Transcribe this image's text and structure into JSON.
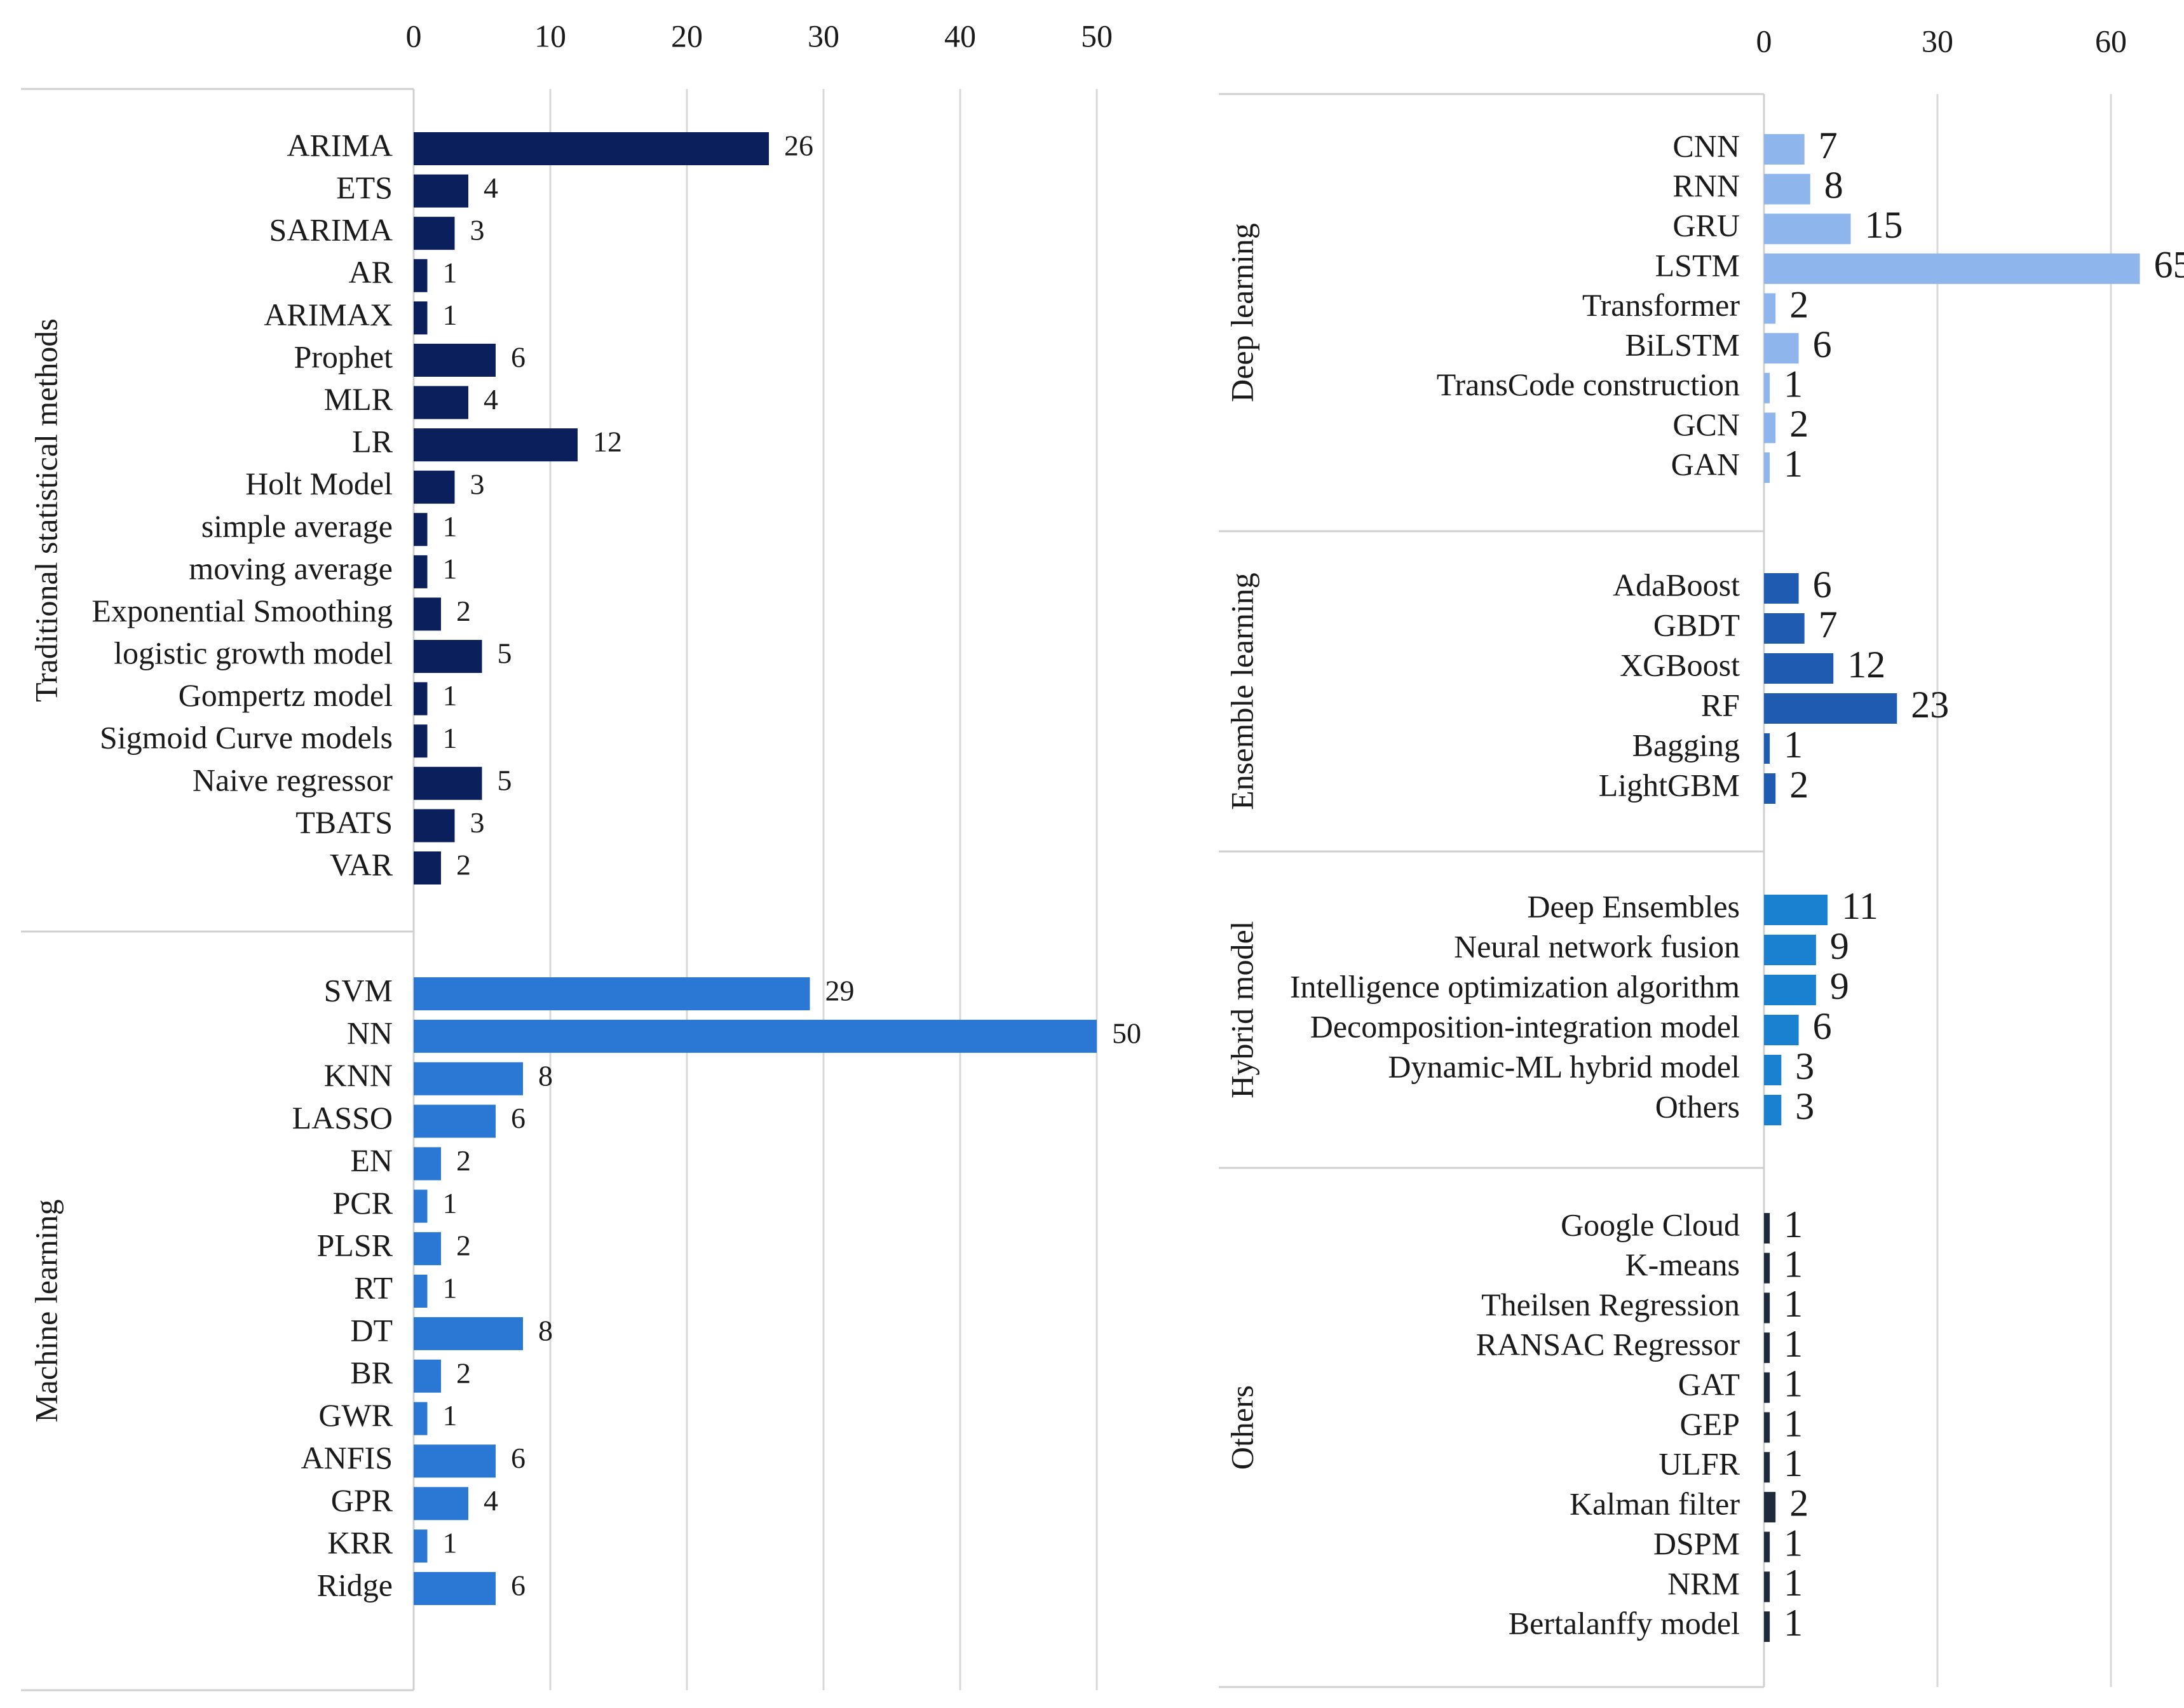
{
  "colors": {
    "traditional": "#0b1f5c",
    "machine_learning": "#2a77d4",
    "deep_learning": "#8fb6ec",
    "ensemble": "#1f5bb0",
    "hybrid": "#1a80d0",
    "others": "#1e2a3a",
    "grid": "#d9d9d9",
    "divider": "#d0d0d0"
  },
  "chart_data": [
    {
      "type": "bar",
      "orientation": "horizontal",
      "panel": "left",
      "xlim": [
        0,
        50
      ],
      "ticks": [
        "0",
        "10",
        "20",
        "30",
        "40",
        "50"
      ],
      "tick_values": [
        0,
        10,
        20,
        30,
        40,
        50
      ],
      "groups": [
        {
          "key": "traditional",
          "label": "Traditional statistical methods",
          "categories": [
            "ARIMA",
            "ETS",
            "SARIMA",
            "AR",
            "ARIMAX",
            "Prophet",
            "MLR",
            "LR",
            "Holt Model",
            "simple average",
            "moving average",
            "Exponential Smoothing",
            "logistic growth model",
            "Gompertz model",
            "Sigmoid Curve models",
            "Naive regressor",
            "TBATS",
            "VAR"
          ],
          "values": [
            26,
            4,
            3,
            1,
            1,
            6,
            4,
            12,
            3,
            1,
            1,
            2,
            5,
            1,
            1,
            5,
            3,
            2
          ]
        },
        {
          "key": "machine_learning",
          "label": "Machine learning",
          "categories": [
            "SVM",
            "NN",
            "KNN",
            "LASSO",
            "EN",
            "PCR",
            "PLSR",
            "RT",
            "DT",
            "BR",
            "GWR",
            "ANFIS",
            "GPR",
            "KRR",
            "Ridge"
          ],
          "values": [
            29,
            50,
            8,
            6,
            2,
            1,
            2,
            1,
            8,
            2,
            1,
            6,
            4,
            1,
            6
          ]
        }
      ]
    },
    {
      "type": "bar",
      "orientation": "horizontal",
      "panel": "right",
      "xlim": [
        0,
        65
      ],
      "ticks": [
        "0",
        "30",
        "60"
      ],
      "tick_values": [
        0,
        30,
        60
      ],
      "groups": [
        {
          "key": "deep_learning",
          "label": "Deep learning",
          "categories": [
            "CNN",
            "RNN",
            "GRU",
            "LSTM",
            "Transformer",
            "BiLSTM",
            "TransCode construction",
            "GCN",
            "GAN"
          ],
          "values": [
            7,
            8,
            15,
            65,
            2,
            6,
            1,
            2,
            1
          ]
        },
        {
          "key": "ensemble",
          "label": "Ensemble learning",
          "categories": [
            "AdaBoost",
            "GBDT",
            "XGBoost",
            "RF",
            "Bagging",
            "LightGBM"
          ],
          "values": [
            6,
            7,
            12,
            23,
            1,
            2
          ]
        },
        {
          "key": "hybrid",
          "label": "Hybrid model",
          "categories": [
            "Deep Ensembles",
            "Neural network fusion",
            "Intelligence optimization algorithm",
            "Decomposition-integration model",
            "Dynamic-ML hybrid model",
            "Others"
          ],
          "values": [
            11,
            9,
            9,
            6,
            3,
            3
          ]
        },
        {
          "key": "others",
          "label": "Others",
          "categories": [
            "Google Cloud",
            "K-means",
            "Theilsen Regression",
            "RANSAC Regressor",
            "GAT",
            "GEP",
            "ULFR",
            "Kalman filter",
            "DSPM",
            "NRM",
            "Bertalanffy model"
          ],
          "values": [
            1,
            1,
            1,
            1,
            1,
            1,
            1,
            2,
            1,
            1,
            1
          ]
        }
      ]
    }
  ]
}
